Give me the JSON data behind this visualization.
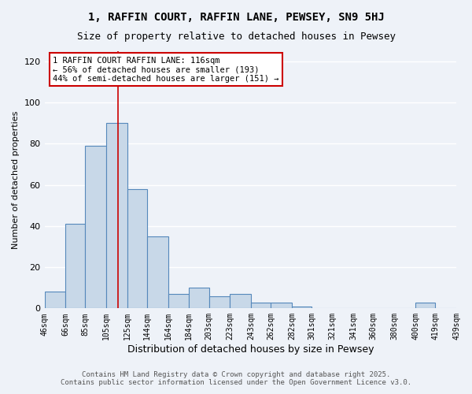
{
  "title1": "1, RAFFIN COURT, RAFFIN LANE, PEWSEY, SN9 5HJ",
  "title2": "Size of property relative to detached houses in Pewsey",
  "xlabel": "Distribution of detached houses by size in Pewsey",
  "ylabel": "Number of detached properties",
  "bin_labels": [
    "46sqm",
    "66sqm",
    "85sqm",
    "105sqm",
    "125sqm",
    "144sqm",
    "164sqm",
    "184sqm",
    "203sqm",
    "223sqm",
    "243sqm",
    "262sqm",
    "282sqm",
    "301sqm",
    "321sqm",
    "341sqm",
    "360sqm",
    "380sqm",
    "400sqm",
    "419sqm",
    "439sqm"
  ],
  "bar_values": [
    8,
    41,
    79,
    90,
    58,
    35,
    7,
    10,
    6,
    7,
    3,
    3,
    1,
    0,
    0,
    0,
    0,
    0,
    3,
    0
  ],
  "bin_edges": [
    46,
    66,
    85,
    105,
    125,
    144,
    164,
    184,
    203,
    223,
    243,
    262,
    282,
    301,
    321,
    341,
    360,
    380,
    400,
    419,
    439
  ],
  "bar_color": "#c8d8e8",
  "bar_edge_color": "#5588bb",
  "vline_x": 116,
  "vline_color": "#cc0000",
  "ylim": [
    0,
    125
  ],
  "yticks": [
    0,
    20,
    40,
    60,
    80,
    100,
    120
  ],
  "annotation_text": "1 RAFFIN COURT RAFFIN LANE: 116sqm\n← 56% of detached houses are smaller (193)\n44% of semi-detached houses are larger (151) →",
  "annotation_box_color": "#ffffff",
  "annotation_box_edge": "#cc0000",
  "footer1": "Contains HM Land Registry data © Crown copyright and database right 2025.",
  "footer2": "Contains public sector information licensed under the Open Government Licence v3.0.",
  "bg_color": "#eef2f8",
  "grid_color": "#ffffff"
}
